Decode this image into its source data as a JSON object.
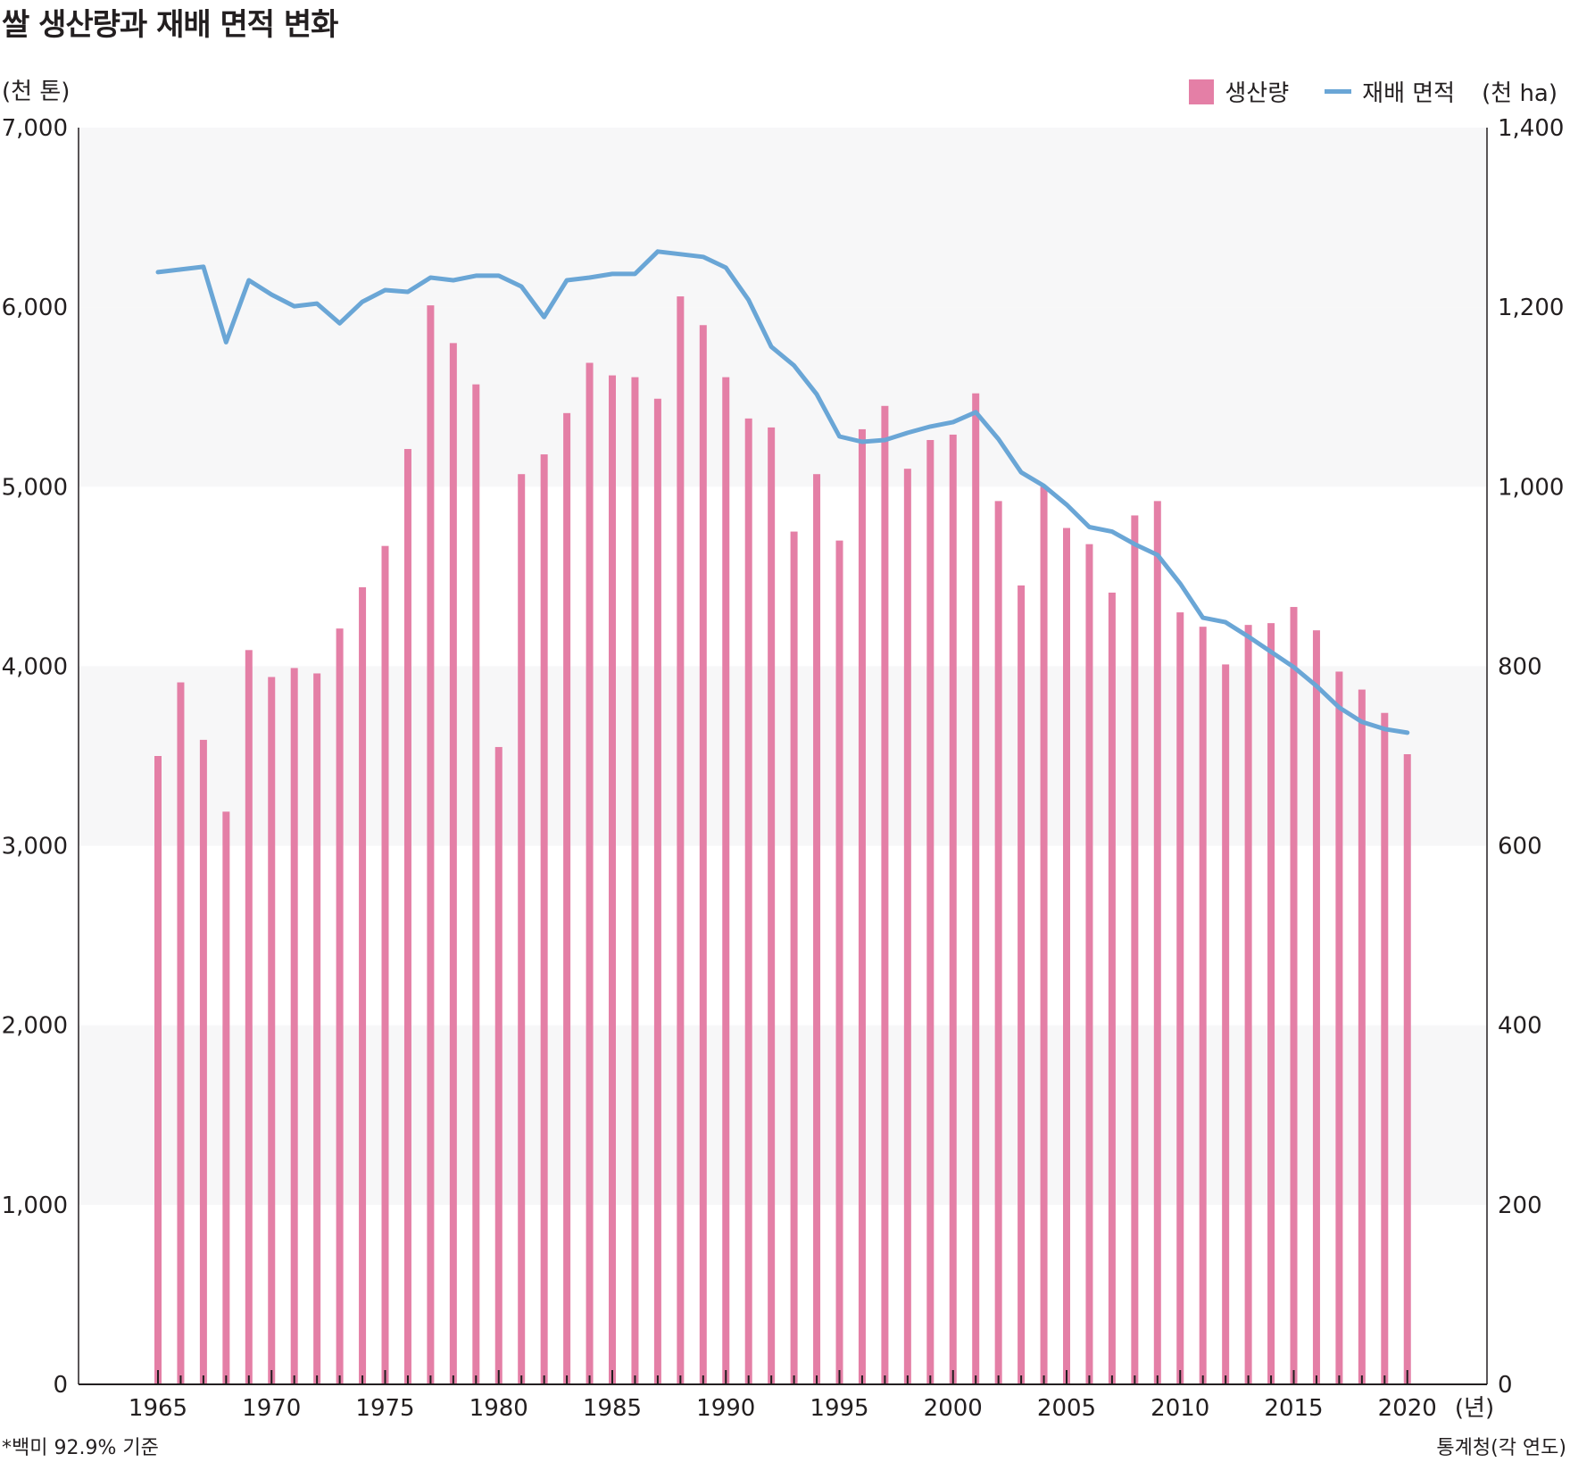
{
  "chart_data": {
    "type": "bar+line",
    "title": "쌀 생산량과 재배 면적 변화",
    "y_left_unit": "(천 톤)",
    "y_right_unit": "(천 ha)",
    "x_unit": "(년)",
    "y_left_range": [
      0,
      7000
    ],
    "y_right_range": [
      0,
      1400
    ],
    "y_left_ticks": [
      "0",
      "1,000",
      "2,000",
      "3,000",
      "4,000",
      "5,000",
      "6,000",
      "7,000"
    ],
    "y_right_ticks": [
      "0",
      "200",
      "400",
      "600",
      "800",
      "1,000",
      "1,200",
      "1,400"
    ],
    "x_tick_labels": [
      "1965",
      "1970",
      "1975",
      "1980",
      "1985",
      "1990",
      "1995",
      "2000",
      "2005",
      "2010",
      "2015",
      "2020"
    ],
    "x": [
      1965,
      1966,
      1967,
      1968,
      1969,
      1970,
      1971,
      1972,
      1973,
      1974,
      1975,
      1976,
      1977,
      1978,
      1979,
      1980,
      1981,
      1982,
      1983,
      1984,
      1985,
      1986,
      1987,
      1988,
      1989,
      1990,
      1991,
      1992,
      1993,
      1994,
      1995,
      1996,
      1997,
      1998,
      1999,
      2000,
      2001,
      2002,
      2003,
      2004,
      2005,
      2006,
      2007,
      2008,
      2009,
      2010,
      2011,
      2012,
      2013,
      2014,
      2015,
      2016,
      2017,
      2018,
      2019,
      2020
    ],
    "series": [
      {
        "name": "생산량",
        "type": "bar",
        "axis": "left",
        "color": "#e47fa6",
        "values": [
          3500,
          3910,
          3590,
          3190,
          4090,
          3940,
          3990,
          3960,
          4210,
          4440,
          4670,
          5210,
          6010,
          5800,
          5570,
          3550,
          5070,
          5180,
          5410,
          5690,
          5620,
          5610,
          5490,
          6060,
          5900,
          5610,
          5380,
          5330,
          4750,
          5070,
          4700,
          5320,
          5450,
          5100,
          5260,
          5290,
          5520,
          4920,
          4450,
          5000,
          4770,
          4680,
          4410,
          4840,
          4920,
          4300,
          4220,
          4010,
          4230,
          4240,
          4330,
          4200,
          3970,
          3870,
          3740,
          3510
        ]
      },
      {
        "name": "재배 면적",
        "type": "line",
        "axis": "right",
        "color": "#6aa6d6",
        "values": [
          1239,
          1242,
          1245,
          1161,
          1230,
          1214,
          1201,
          1204,
          1182,
          1206,
          1219,
          1217,
          1233,
          1230,
          1235,
          1235,
          1223,
          1189,
          1230,
          1233,
          1237,
          1237,
          1262,
          1259,
          1256,
          1244,
          1208,
          1156,
          1135,
          1103,
          1056,
          1050,
          1052,
          1060,
          1067,
          1072,
          1083,
          1053,
          1016,
          1001,
          980,
          955,
          950,
          936,
          924,
          892,
          854,
          849,
          833,
          816,
          799,
          778,
          754,
          738,
          730,
          726
        ]
      }
    ],
    "grid": "alternating horizontal bands",
    "legend_position": "top-right"
  },
  "notes": {
    "left": "*백미 92.9% 기준",
    "right": "통계청(각 연도)"
  },
  "colors": {
    "bar": "#e47fa6",
    "line": "#6aa6d6",
    "band": "#f7f7f8",
    "axis": "#231f20"
  }
}
